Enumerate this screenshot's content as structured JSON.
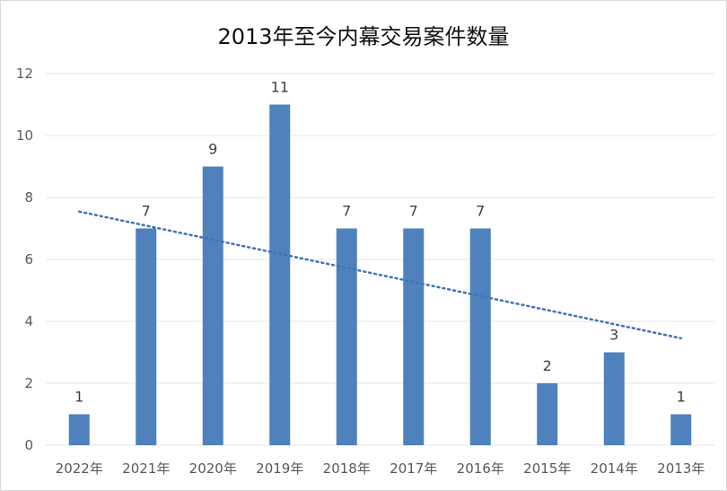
{
  "chart_data": {
    "type": "bar",
    "title": "2013年至今内幕交易案件数量",
    "categories": [
      "2022年",
      "2021年",
      "2020年",
      "2019年",
      "2018年",
      "2017年",
      "2016年",
      "2015年",
      "2014年",
      "2013年"
    ],
    "values": [
      1,
      7,
      9,
      11,
      7,
      7,
      7,
      2,
      3,
      1
    ],
    "ylim": [
      0,
      12
    ],
    "yticks": [
      0,
      2,
      4,
      6,
      8,
      10,
      12
    ],
    "grid": true,
    "legend": "none",
    "trendline": "linear",
    "colors": {
      "bar": "#4f81bd",
      "trend": "#3f74b4",
      "grid": "#e6e6e6",
      "text": "#595959"
    }
  }
}
